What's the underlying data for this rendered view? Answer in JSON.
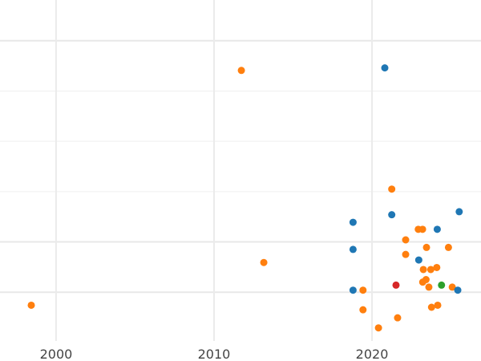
{
  "chart_data": {
    "type": "scatter",
    "title": "",
    "xlabel": "",
    "ylabel": "",
    "xlim": [
      1996.45,
      2026.9
    ],
    "ylim": [
      -0.97,
      5.81
    ],
    "x_ticks": [
      2000,
      2010,
      2020
    ],
    "x_tick_labels": [
      "2000",
      "2010",
      "2020"
    ],
    "y_gridlines": [
      0,
      1,
      2,
      3,
      4,
      5
    ],
    "y_major_gridlines": [
      0,
      1,
      5
    ],
    "grid": true,
    "series": [
      {
        "name": "orange",
        "color": "#ff7f0e",
        "points": [
          [
            2011.73,
            4.41
          ],
          [
            2013.15,
            0.59
          ],
          [
            1998.43,
            -0.26
          ],
          [
            2021.25,
            2.05
          ],
          [
            2022.93,
            1.25
          ],
          [
            2023.2,
            1.25
          ],
          [
            2022.13,
            1.04
          ],
          [
            2023.45,
            0.89
          ],
          [
            2024.84,
            0.89
          ],
          [
            2022.13,
            0.75
          ],
          [
            2023.25,
            0.45
          ],
          [
            2023.72,
            0.45
          ],
          [
            2024.1,
            0.49
          ],
          [
            2023.21,
            0.2
          ],
          [
            2023.42,
            0.25
          ],
          [
            2023.6,
            0.1
          ],
          [
            2025.08,
            0.1
          ],
          [
            2019.43,
            0.04
          ],
          [
            2019.43,
            -0.35
          ],
          [
            2021.62,
            -0.51
          ],
          [
            2020.41,
            -0.71
          ],
          [
            2023.77,
            -0.3
          ],
          [
            2024.16,
            -0.26
          ]
        ]
      },
      {
        "name": "blue",
        "color": "#1f77b4",
        "points": [
          [
            2020.81,
            4.46
          ],
          [
            2021.25,
            1.54
          ],
          [
            2018.8,
            1.39
          ],
          [
            2025.52,
            1.6
          ],
          [
            2024.13,
            1.25
          ],
          [
            2018.8,
            0.85
          ],
          [
            2022.96,
            0.64
          ],
          [
            2018.8,
            0.04
          ],
          [
            2025.43,
            0.04
          ]
        ]
      },
      {
        "name": "red",
        "color": "#d62728",
        "points": [
          [
            2021.52,
            0.14
          ]
        ]
      },
      {
        "name": "green",
        "color": "#2ca02c",
        "points": [
          [
            2024.4,
            0.14
          ]
        ]
      }
    ]
  }
}
